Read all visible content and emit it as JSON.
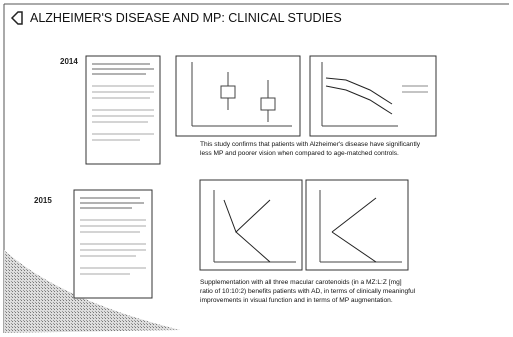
{
  "header": {
    "title": "ALZHEIMER'S DISEASE AND MP: CLINICAL STUDIES"
  },
  "studies": [
    {
      "year": "2014",
      "caption": [
        "This study confirms that patients with Alzheimer's disease have significantly",
        "less MP and poorer vision when compared to age-matched controls."
      ]
    },
    {
      "year": "2015",
      "caption": [
        "Supplementation with all three macular carotenoids (in a MZ:L:Z [mg]",
        "ratio of 10:10:2) benefits patients with AD, in terms of clinically meaningful",
        "improvements in visual function and in terms of MP augmentation."
      ]
    }
  ]
}
